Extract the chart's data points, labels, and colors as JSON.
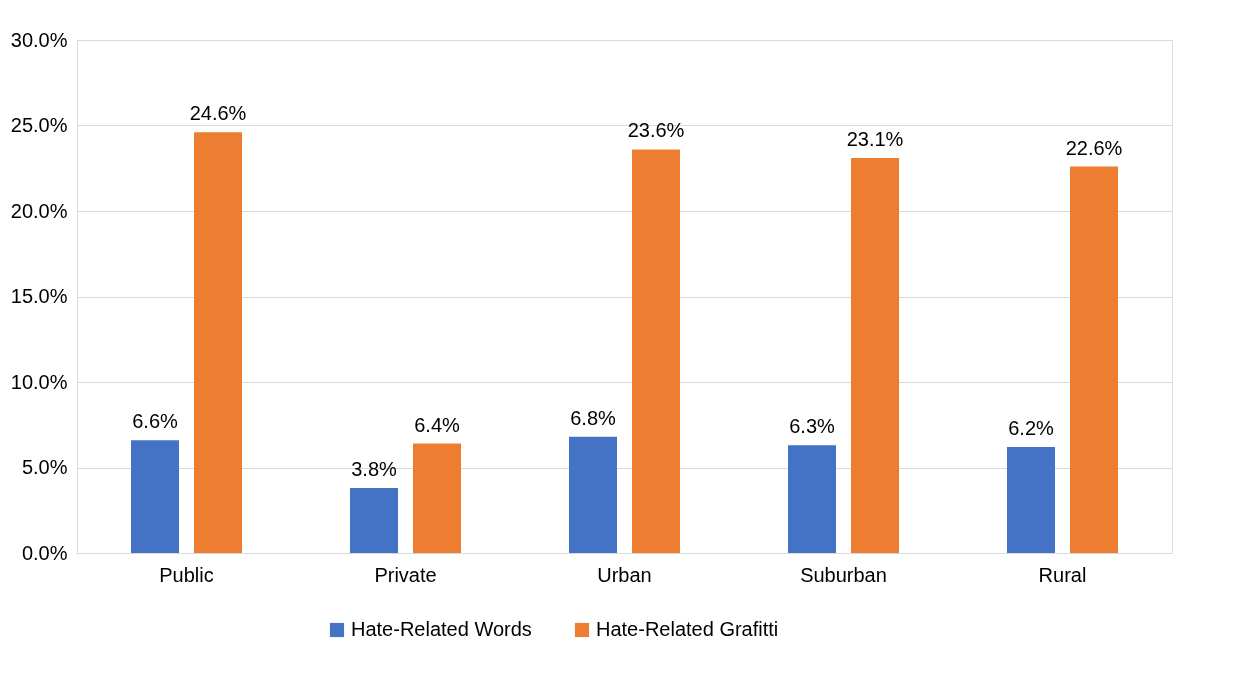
{
  "chart_data": {
    "type": "bar",
    "categories": [
      "Public",
      "Private",
      "Urban",
      "Suburban",
      "Rural"
    ],
    "series": [
      {
        "name": "Hate-Related Words",
        "color": "#4472c4",
        "values": [
          6.6,
          3.8,
          6.8,
          6.3,
          6.2
        ],
        "value_labels": [
          "6.6%",
          "3.8%",
          "6.8%",
          "6.3%",
          "6.2%"
        ]
      },
      {
        "name": "Hate-Related Grafitti",
        "color": "#ed7d31",
        "values": [
          24.6,
          6.4,
          23.6,
          23.1,
          22.6
        ],
        "value_labels": [
          "24.6%",
          "6.4%",
          "23.6%",
          "23.1%",
          "22.6%"
        ]
      }
    ],
    "ylim": [
      0,
      30
    ],
    "yticks": [
      {
        "value": 0,
        "label": "0.0%"
      },
      {
        "value": 5,
        "label": "5.0%"
      },
      {
        "value": 10,
        "label": "10.0%"
      },
      {
        "value": 15,
        "label": "15.0%"
      },
      {
        "value": 20,
        "label": "20.0%"
      },
      {
        "value": 25,
        "label": "25.0%"
      },
      {
        "value": 30,
        "label": "30.0%"
      }
    ],
    "grid": "y",
    "legend": "bottom"
  }
}
